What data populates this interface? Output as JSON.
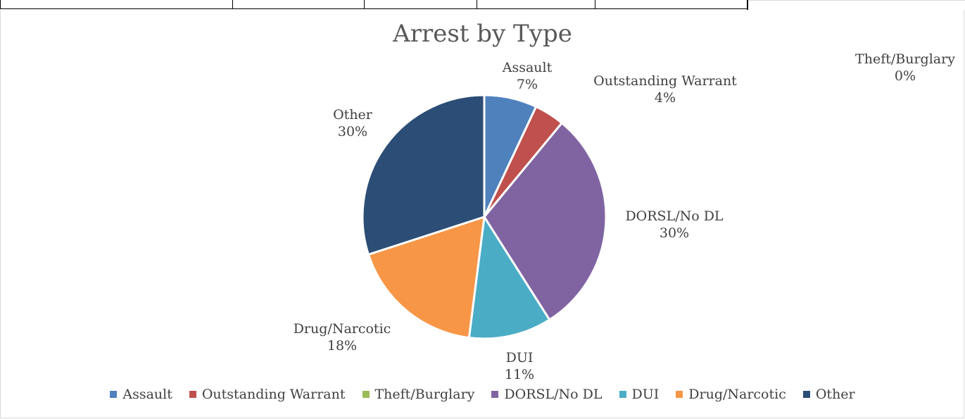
{
  "chart_data": {
    "type": "pie",
    "title": "Arrest by Type",
    "categories": [
      "Assault",
      "Outstanding Warrant",
      "Theft/Burglary",
      "DORSL/No DL",
      "DUI",
      "Drug/Narcotic",
      "Other"
    ],
    "values": [
      7,
      4,
      0,
      30,
      11,
      18,
      30
    ],
    "value_labels": [
      "7%",
      "4%",
      "0%",
      "30%",
      "11%",
      "18%",
      "30%"
    ],
    "colors": [
      "#4f81bd",
      "#c0504d",
      "#9bbb59",
      "#8064a2",
      "#4bacc6",
      "#f79646",
      "#2c4d75"
    ],
    "legend_position": "bottom"
  }
}
